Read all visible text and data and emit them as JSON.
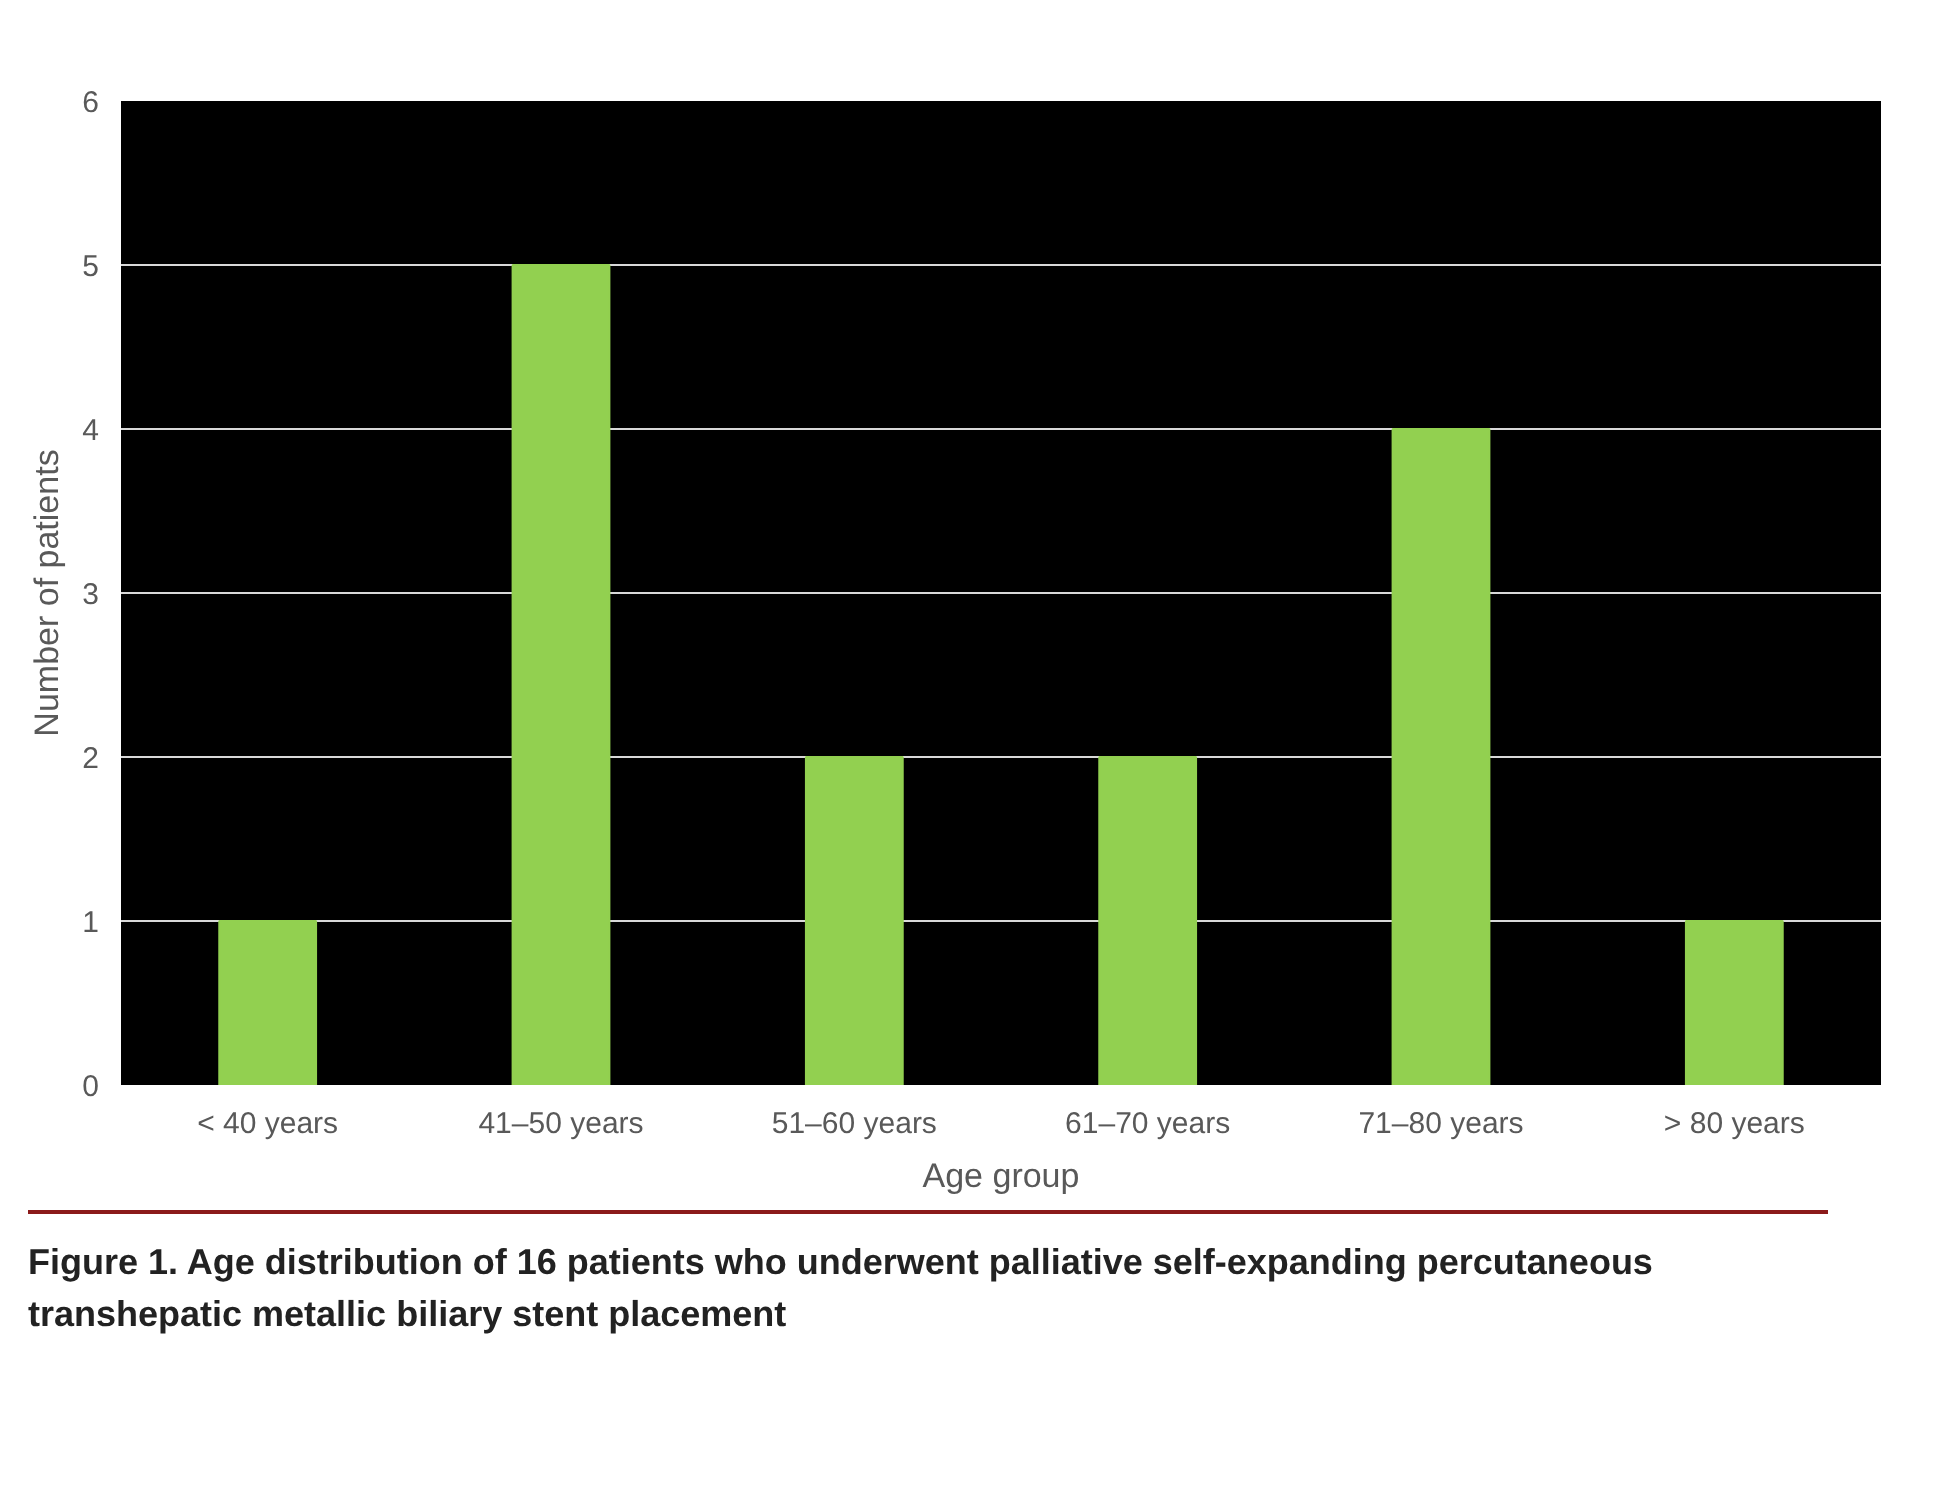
{
  "chart_data": {
    "type": "bar",
    "categories": [
      "< 40 years",
      "41–50 years",
      "51–60 years",
      "61–70 years",
      "71–80 years",
      "> 80 years"
    ],
    "values": [
      1,
      5,
      2,
      2,
      4,
      1
    ],
    "color": "#92d050",
    "xlabel": "Age group",
    "ylabel": "Number of patients",
    "ylim": [
      0,
      6
    ],
    "yticks": [
      0,
      1,
      2,
      3,
      4,
      5,
      6
    ],
    "grid": "y",
    "annotations": [
      "Figure 1. Age distribution of 16 patients who underwent palliative self-expanding percutaneous transhepatic metallic biliary stent placement"
    ]
  }
}
